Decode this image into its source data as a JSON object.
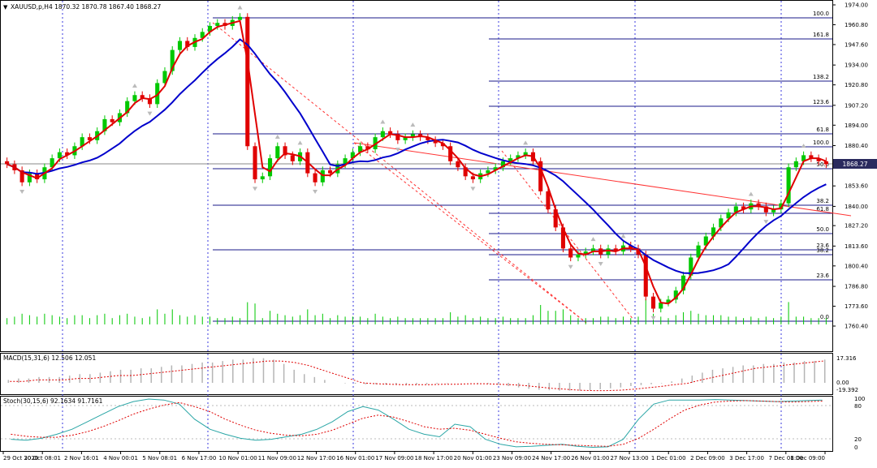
{
  "chart_data": [
    {
      "type": "candlestick",
      "title": "XAUUSD,p,H4  1870.32 1870.78 1867.40 1868.27",
      "symbol": "XAUUSD,p",
      "timeframe": "H4",
      "ohlc": {
        "open": 1870.32,
        "high": 1870.78,
        "low": 1867.4,
        "close": 1868.27
      },
      "current_price_label": "1868.27",
      "ylim": [
        1760.4,
        1974.0
      ],
      "y_ticks": [
        "1974.00",
        "1960.80",
        "1947.60",
        "1934.00",
        "1920.80",
        "1907.20",
        "1894.00",
        "1880.40",
        "1868.27",
        "1853.60",
        "1840.00",
        "1827.20",
        "1813.60",
        "1800.40",
        "1786.80",
        "1773.60",
        "1760.40"
      ],
      "x_ticks": [
        "29 Oct 2020",
        "30 Oct 08:01",
        "2 Nov 16:01",
        "4 Nov 00:01",
        "5 Nov 08:01",
        "6 Nov 17:00",
        "10 Nov 01:00",
        "11 Nov 09:00",
        "12 Nov 17:00",
        "16 Nov 01:00",
        "17 Nov 09:00",
        "18 Nov 17:00",
        "20 Nov 01:00",
        "23 Nov 09:00",
        "24 Nov 17:00",
        "26 Nov 01:00",
        "27 Nov 13:00",
        "1 Dec 01:00",
        "2 Dec 09:00",
        "3 Dec 17:00",
        "7 Dec 01:00",
        "8 Dec 09:00"
      ],
      "close_series": [
        1868,
        1864,
        1856,
        1862,
        1858,
        1866,
        1872,
        1876,
        1874,
        1880,
        1886,
        1884,
        1890,
        1898,
        1896,
        1902,
        1910,
        1914,
        1912,
        1908,
        1922,
        1930,
        1944,
        1950,
        1946,
        1952,
        1956,
        1960,
        1962,
        1960,
        1964,
        1966,
        1880,
        1858,
        1860,
        1872,
        1880,
        1874,
        1870,
        1876,
        1862,
        1856,
        1864,
        1862,
        1868,
        1872,
        1876,
        1880,
        1878,
        1886,
        1890,
        1888,
        1884,
        1886,
        1888,
        1886,
        1884,
        1882,
        1880,
        1870,
        1866,
        1860,
        1858,
        1862,
        1864,
        1866,
        1870,
        1872,
        1874,
        1876,
        1870,
        1850,
        1838,
        1826,
        1812,
        1806,
        1808,
        1810,
        1812,
        1808,
        1812,
        1810,
        1814,
        1812,
        1808,
        1780,
        1772,
        1776,
        1778,
        1784,
        1794,
        1806,
        1814,
        1820,
        1826,
        1832,
        1836,
        1840,
        1838,
        1842,
        1840,
        1836,
        1838,
        1842,
        1866,
        1870,
        1874,
        1872,
        1870,
        1868
      ],
      "ma_fast_color": "#e00000",
      "ma_slow_color": "#0000cc",
      "fib_right_levels": [
        "100.0",
        "161.8",
        "138.2",
        "123.6",
        "61.8",
        "100.0",
        "50.0",
        "38.2",
        "61.8",
        "50.0",
        "23.6",
        "38.2",
        "23.6",
        "0.0"
      ],
      "colors": {
        "bull": "#00c800",
        "bear": "#e00000",
        "grid_vline": "#3a3adf",
        "price_line": "#888888",
        "label_bg": "#2a2a5e"
      }
    },
    {
      "type": "macd",
      "title": "MACD(15,31,6) 12.506 12.051",
      "ylim_labels": [
        "17.316",
        "0.00",
        "-19.392"
      ],
      "histogram": [
        2,
        3,
        3,
        4,
        4,
        4,
        5,
        6,
        6,
        7,
        8,
        9,
        9,
        10,
        10,
        11,
        12,
        12,
        13,
        14,
        14,
        15,
        16,
        16,
        17,
        17,
        16,
        13,
        9,
        6,
        4,
        2,
        0,
        -1,
        -2,
        -3,
        -3,
        -4,
        -4,
        -4,
        -4,
        -3,
        -2,
        -1,
        0,
        0,
        -1,
        -2,
        -4,
        -7,
        -10,
        -13,
        -15,
        -16,
        -17,
        -17,
        -17,
        -16,
        -14,
        -12,
        -10,
        -7,
        -5,
        -3,
        -1,
        1,
        3,
        5,
        7,
        9,
        10,
        11,
        12,
        12,
        13,
        13,
        14,
        14,
        15,
        15,
        16
      ],
      "signal": [
        1,
        1,
        2,
        2,
        2,
        3,
        3,
        4,
        5,
        5,
        6,
        7,
        8,
        9,
        10,
        11,
        12,
        13,
        14,
        15,
        15,
        14,
        12,
        9,
        6,
        3,
        0,
        -2,
        -3,
        -4,
        -4,
        -4,
        -3,
        -3,
        -2,
        -2,
        -3,
        -4,
        -6,
        -9,
        -12,
        -14,
        -16,
        -17,
        -17,
        -16,
        -14,
        -11,
        -8,
        -4,
        -1,
        2,
        4,
        6,
        8,
        10,
        11,
        12,
        13,
        14,
        15
      ],
      "colors": {
        "histogram": "#b5b5b5",
        "signal": "#e00000"
      }
    },
    {
      "type": "stochastic",
      "title": "Stoch(30,15,6) 92.1634 91.7161",
      "y_labels": [
        "100",
        "80",
        "20",
        "0"
      ],
      "main": [
        20,
        18,
        22,
        30,
        40,
        55,
        70,
        85,
        95,
        100,
        98,
        90,
        60,
        40,
        30,
        22,
        18,
        20,
        25,
        30,
        40,
        55,
        75,
        85,
        78,
        60,
        40,
        30,
        25,
        50,
        45,
        20,
        10,
        5,
        6,
        8,
        10,
        6,
        4,
        5,
        20,
        60,
        90,
        98,
        98,
        98,
        99,
        98,
        97,
        96,
        95,
        96,
        97,
        98
      ],
      "signal": [
        30,
        26,
        24,
        24,
        28,
        35,
        45,
        57,
        70,
        80,
        88,
        93,
        85,
        75,
        60,
        48,
        38,
        32,
        28,
        27,
        30,
        38,
        50,
        62,
        68,
        64,
        55,
        45,
        40,
        42,
        38,
        30,
        22,
        15,
        12,
        10,
        9,
        8,
        7,
        6,
        10,
        22,
        40,
        60,
        78,
        88,
        94,
        96,
        97,
        96,
        95,
        94,
        95,
        96
      ],
      "colors": {
        "main": "#2aa6a6",
        "signal": "#e00000"
      }
    }
  ]
}
